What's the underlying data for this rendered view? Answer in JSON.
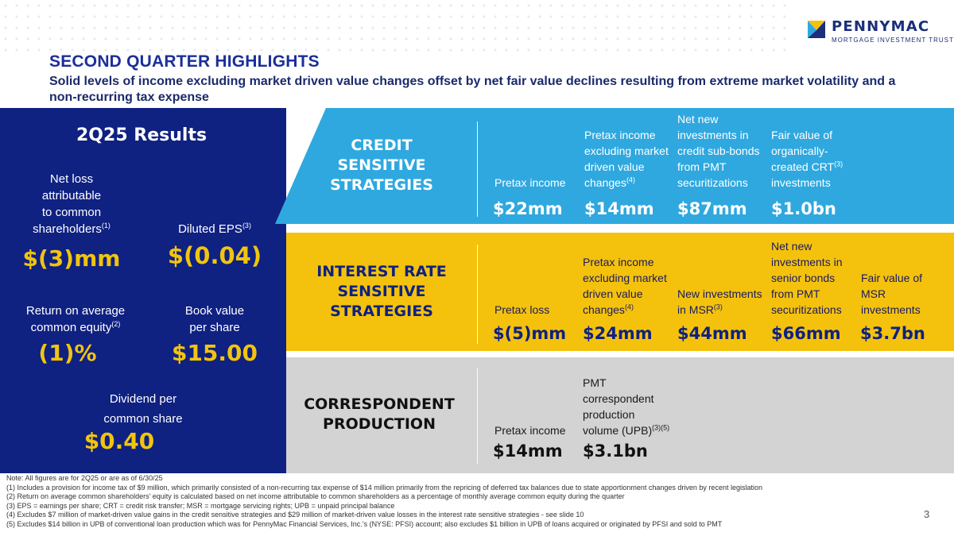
{
  "brand": {
    "name": "PENNYMAC",
    "tagline": "MORTGAGE INVESTMENT TRUST",
    "accent": "#1b2f9a",
    "navy": "#0f2181",
    "gold": "#f1c40f",
    "sky": "#2fa8df",
    "yellow": "#f4c20d",
    "gray": "#d3d3d3"
  },
  "header": {
    "title": "SECOND QUARTER HIGHLIGHTS",
    "subtitle": "Solid levels of income excluding market driven value changes offset by net fair value declines resulting from extreme market volatility and a non-recurring tax expense"
  },
  "results": {
    "title": "2Q25 Results",
    "net_loss": {
      "label_1": "Net loss",
      "label_2": "attributable",
      "label_3": "to common",
      "label_4": "shareholders",
      "sup": "(1)",
      "value": "$(3)mm"
    },
    "eps": {
      "label": "Diluted EPS",
      "sup": "(3)",
      "value": "$(0.04)"
    },
    "roe": {
      "label_1": "Return on average",
      "label_2": "common equity",
      "sup": "(2)",
      "value": "(1)%"
    },
    "book": {
      "label_1": "Book value",
      "label_2": "per share",
      "value": "$15.00"
    },
    "dividend": {
      "label_1": "Dividend per",
      "label_2": "common share",
      "value": "$0.40"
    }
  },
  "credit": {
    "name_1": "CREDIT",
    "name_2": "SENSITIVE",
    "name_3": "STRATEGIES",
    "cols": [
      {
        "l1": "",
        "l2": "",
        "l3": "",
        "l4": "Pretax income",
        "sup": "",
        "value": "$22mm"
      },
      {
        "l1": "",
        "l2": "Pretax income",
        "l3": "excluding market",
        "l4a": "driven value",
        "l4": "changes",
        "sup": "(4)",
        "value": "$14mm"
      },
      {
        "l1": "Net new",
        "l2": "investments in",
        "l3": "credit sub-bonds",
        "l4a": "from PMT",
        "l4": "securitizations",
        "sup": "",
        "value": "$87mm"
      },
      {
        "l1": "",
        "l2": "Fair value of",
        "l3": "organically-",
        "l4a": "created CRT",
        "l4": "investments",
        "sup": "(3)",
        "value": "$1.0bn"
      }
    ]
  },
  "interest": {
    "name_1": "INTEREST RATE",
    "name_2": "SENSITIVE",
    "name_3": "STRATEGIES",
    "cols": [
      {
        "lines": [
          "",
          "",
          "",
          "Pretax loss"
        ],
        "sup": "",
        "value": "$(5)mm"
      },
      {
        "lines": [
          "",
          "Pretax income",
          "excluding market",
          "driven value",
          "changes"
        ],
        "sup": "(4)",
        "value": "$24mm"
      },
      {
        "lines": [
          "",
          "",
          "",
          "New investments",
          "in MSR"
        ],
        "sup": "(3)",
        "value": "$44mm"
      },
      {
        "lines": [
          "Net new",
          "investments in",
          "senior bonds",
          "from PMT",
          "securitizations"
        ],
        "sup": "",
        "value": "$66mm"
      },
      {
        "lines": [
          "",
          "",
          "Fair value of",
          "MSR",
          "investments"
        ],
        "sup": "",
        "value": "$3.7bn"
      }
    ]
  },
  "correspondent": {
    "name_1": "CORRESPONDENT",
    "name_2": "PRODUCTION",
    "cols": [
      {
        "lines": [
          "Pretax income"
        ],
        "sup": "",
        "value": "$14mm"
      },
      {
        "lines": [
          "PMT",
          "correspondent",
          "production",
          "volume (UPB)"
        ],
        "sup": "(3)(5)",
        "value": "$3.1bn"
      }
    ]
  },
  "notes": [
    "Note: All figures are for 2Q25 or are as of 6/30/25",
    "(1) Includes a provision for income tax of $9 million, which primarily consisted of a non-recurring tax expense of $14 million primarily from the repricing of deferred tax balances due to state apportionment changes driven by recent legislation",
    "(2) Return on average common shareholders’ equity is calculated based on net income attributable to common shareholders as a percentage of monthly average common equity during the quarter",
    "(3) EPS = earnings per share; CRT = credit risk transfer; MSR = mortgage servicing rights; UPB = unpaid principal balance",
    "(4) Excludes $7 million of market-driven value gains in the credit sensitive strategies and $29 million of market-driven value losses in the interest rate sensitive strategies - see slide 10",
    "(5) Excludes $14 billion in UPB of conventional loan production which was for PennyMac Financial Services, Inc.’s (NYSE: PFSI) account; also excludes $1 billion in UPB of loans acquired or originated by PFSI and sold to PMT"
  ],
  "page_number": "3"
}
